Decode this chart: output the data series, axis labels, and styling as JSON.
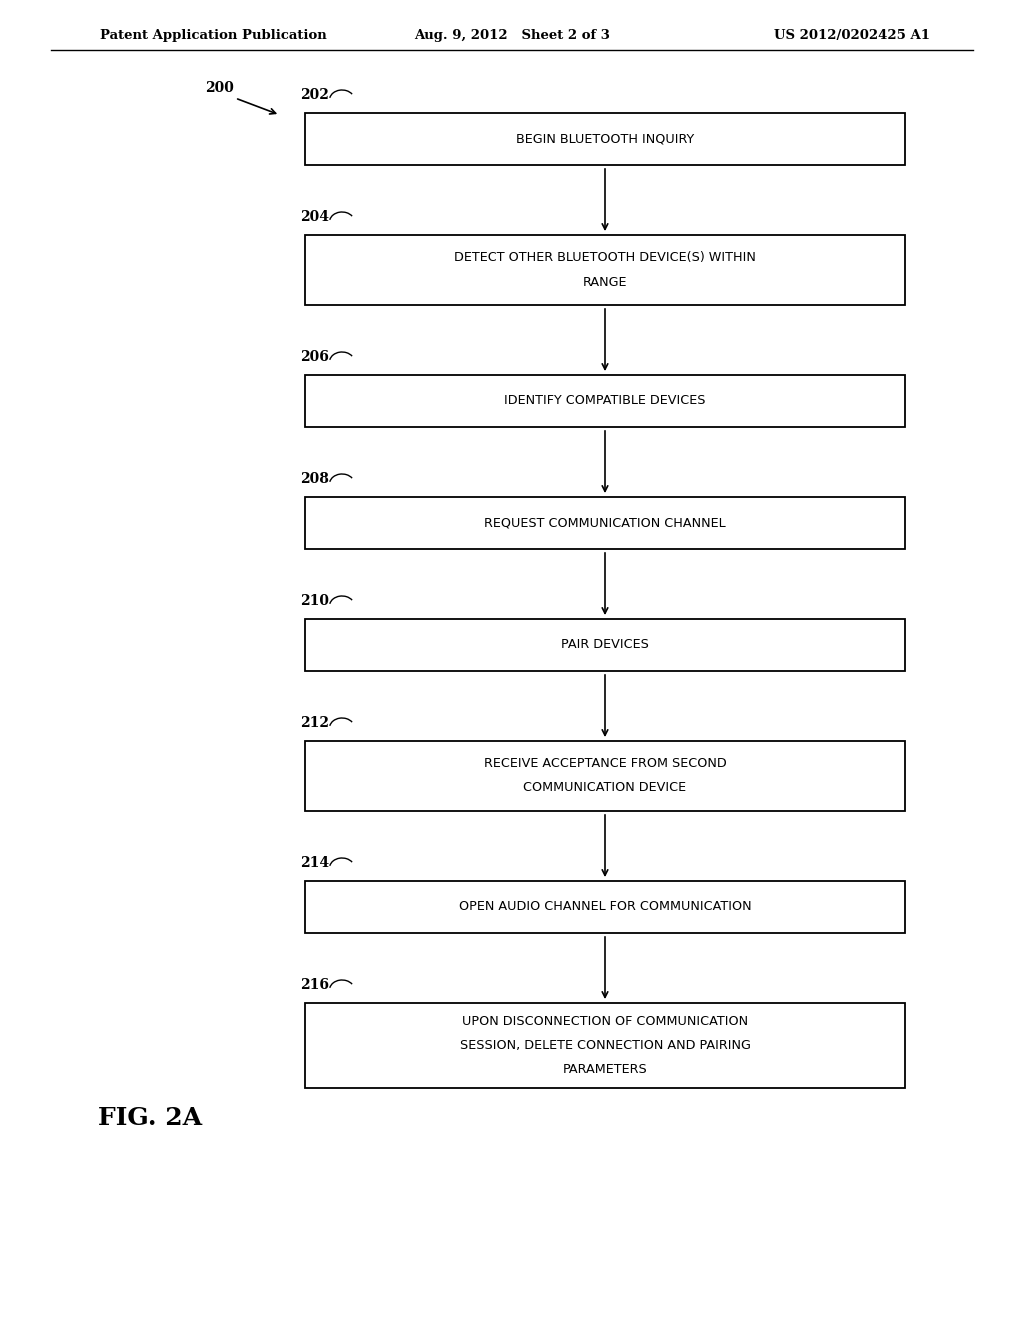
{
  "header_left": "Patent Application Publication",
  "header_mid": "Aug. 9, 2012   Sheet 2 of 3",
  "header_right": "US 2012/0202425 A1",
  "fig_label": "FIG. 2A",
  "diagram_label": "200",
  "boxes": [
    {
      "id": "202",
      "label": "BEGIN BLUETOOTH INQUIRY",
      "lines": [
        "BEGIN BLUETOOTH INQUIRY"
      ]
    },
    {
      "id": "204",
      "label": "DETECT OTHER BLUETOOTH DEVICE(S) WITHIN RANGE",
      "lines": [
        "DETECT OTHER BLUETOOTH DEVICE(S) WITHIN",
        "RANGE"
      ]
    },
    {
      "id": "206",
      "label": "IDENTIFY COMPATIBLE DEVICES",
      "lines": [
        "IDENTIFY COMPATIBLE DEVICES"
      ]
    },
    {
      "id": "208",
      "label": "REQUEST COMMUNICATION CHANNEL",
      "lines": [
        "REQUEST COMMUNICATION CHANNEL"
      ]
    },
    {
      "id": "210",
      "label": "PAIR DEVICES",
      "lines": [
        "PAIR DEVICES"
      ]
    },
    {
      "id": "212",
      "label": "RECEIVE ACCEPTANCE FROM SECOND COMMUNICATION DEVICE",
      "lines": [
        "RECEIVE ACCEPTANCE FROM SECOND",
        "COMMUNICATION DEVICE"
      ]
    },
    {
      "id": "214",
      "label": "OPEN AUDIO CHANNEL FOR COMMUNICATION",
      "lines": [
        "OPEN AUDIO CHANNEL FOR COMMUNICATION"
      ]
    },
    {
      "id": "216",
      "label": "UPON DISCONNECTION OF COMMUNICATION SESSION, DELETE CONNECTION AND PAIRING PARAMETERS",
      "lines": [
        "UPON DISCONNECTION OF COMMUNICATION",
        "SESSION, DELETE CONNECTION AND PAIRING",
        "PARAMETERS"
      ]
    }
  ],
  "bg_color": "#ffffff",
  "box_edge_color": "#000000",
  "text_color": "#000000",
  "arrow_color": "#000000"
}
